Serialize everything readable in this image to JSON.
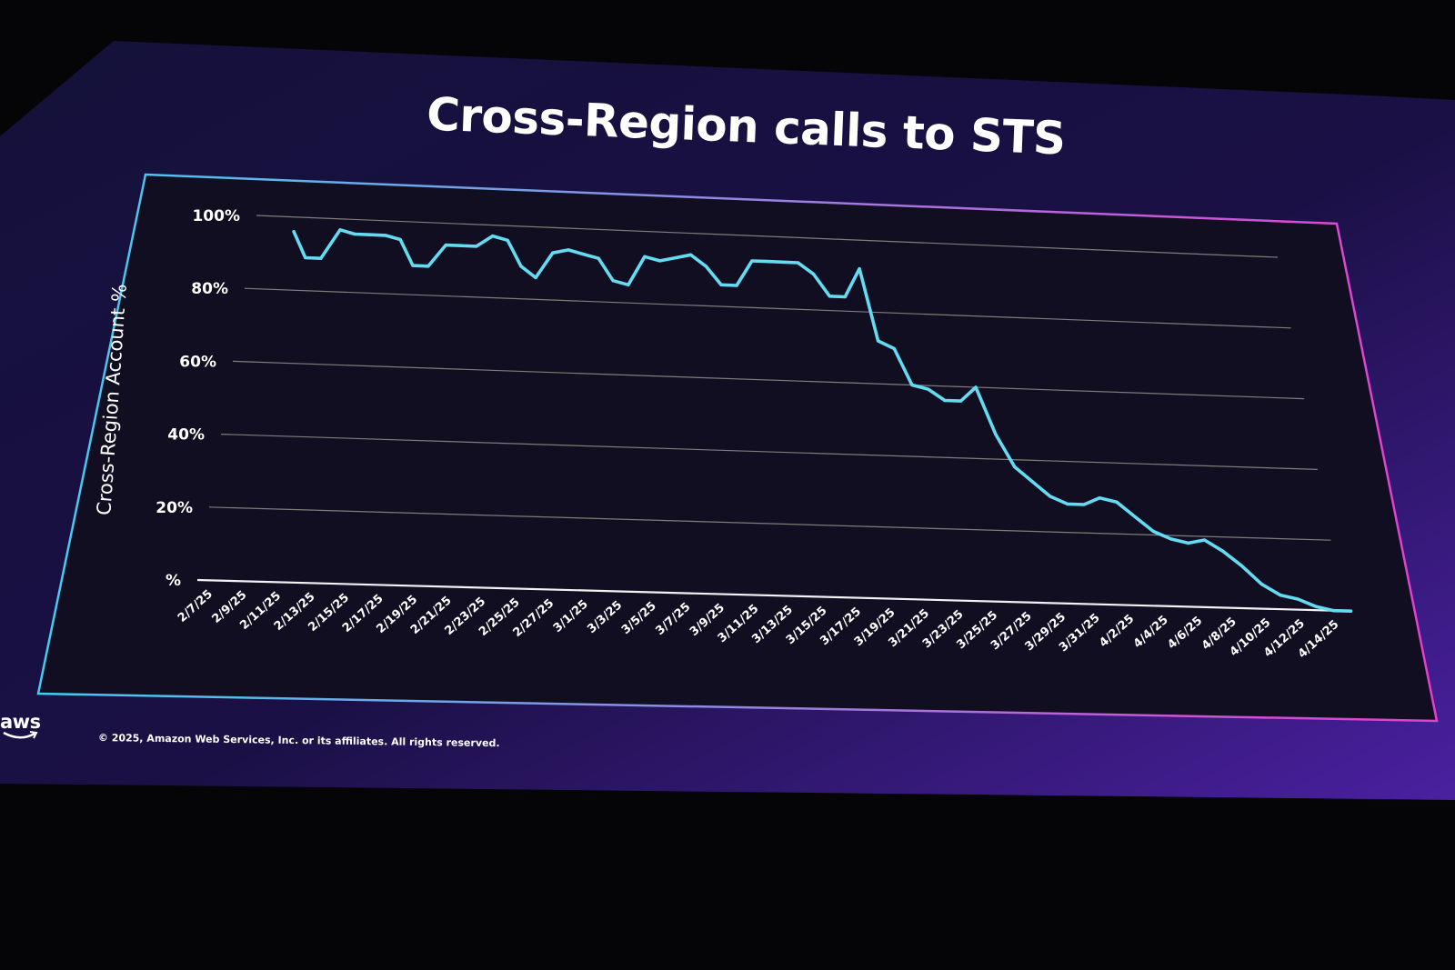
{
  "slide": {
    "title": "Cross-Region calls to STS",
    "copyright": "© 2025, Amazon Web Services, Inc. or its affiliates. All rights reserved.",
    "logo_text": "aws",
    "colors": {
      "background_dark": "#0c0a28",
      "background_light": "#48209a",
      "frame_left": "#42cdf2",
      "frame_right": "#e63ecf",
      "line": "#63dcf2",
      "grid": "#c8c8b4",
      "text": "#ffffff"
    }
  },
  "chart_data": {
    "type": "line",
    "title": "Cross-Region calls to STS",
    "xlabel": "",
    "ylabel": "Cross-Region Account %",
    "ylim": [
      0,
      100
    ],
    "yticks": [
      0,
      20,
      40,
      60,
      80,
      100
    ],
    "ytick_labels": [
      "%",
      "20%",
      "40%",
      "60%",
      "80%",
      "100%"
    ],
    "grid": true,
    "x_tick_labels": [
      "2/7/25",
      "2/9/25",
      "2/11/25",
      "2/13/25",
      "2/15/25",
      "2/17/25",
      "2/19/25",
      "2/21/25",
      "2/23/25",
      "2/25/25",
      "2/27/25",
      "3/1/25",
      "3/3/25",
      "3/5/25",
      "3/7/25",
      "3/9/25",
      "3/11/25",
      "3/13/25",
      "3/15/25",
      "3/17/25",
      "3/19/25",
      "3/21/25",
      "3/23/25",
      "3/25/25",
      "3/27/25",
      "3/29/25",
      "3/31/25",
      "4/2/25",
      "4/4/25",
      "4/6/25",
      "4/8/25",
      "4/10/25",
      "4/12/25",
      "4/14/25"
    ],
    "x": [
      "2/9/25",
      "2/10/25",
      "2/11/25",
      "2/12/25",
      "2/13/25",
      "2/14/25",
      "2/15/25",
      "2/16/25",
      "2/17/25",
      "2/18/25",
      "2/19/25",
      "2/20/25",
      "2/21/25",
      "2/22/25",
      "2/23/25",
      "2/24/25",
      "2/25/25",
      "2/26/25",
      "2/27/25",
      "2/28/25",
      "3/1/25",
      "3/2/25",
      "3/3/25",
      "3/4/25",
      "3/5/25",
      "3/6/25",
      "3/7/25",
      "3/8/25",
      "3/9/25",
      "3/10/25",
      "3/11/25",
      "3/12/25",
      "3/13/25",
      "3/14/25",
      "3/15/25",
      "3/16/25",
      "3/17/25",
      "3/18/25",
      "3/19/25",
      "3/20/25",
      "3/21/25",
      "3/22/25",
      "3/23/25",
      "3/24/25",
      "3/25/25",
      "3/26/25",
      "3/27/25",
      "3/28/25",
      "3/29/25",
      "3/30/25",
      "3/31/25",
      "4/1/25",
      "4/2/25",
      "4/3/25",
      "4/4/25",
      "4/5/25",
      "4/6/25",
      "4/7/25",
      "4/8/25",
      "4/9/25",
      "4/10/25",
      "4/11/25",
      "4/12/25",
      "4/13/25",
      "4/14/25",
      "4/15/25"
    ],
    "series": [
      {
        "name": "",
        "values": [
          96,
          89,
          89,
          97,
          96,
          96,
          96,
          95,
          88,
          88,
          94,
          94,
          94,
          97,
          96,
          89,
          86,
          93,
          94,
          93,
          92,
          86,
          85,
          93,
          92,
          93,
          94,
          91,
          86,
          86,
          93,
          93,
          93,
          93,
          90,
          84,
          84,
          92,
          72,
          70,
          60,
          59,
          56,
          56,
          60,
          47,
          38,
          34,
          30,
          28,
          28,
          30,
          29,
          25,
          21,
          19,
          18,
          19,
          16,
          12,
          7,
          4,
          3,
          1,
          0,
          0
        ]
      }
    ]
  }
}
